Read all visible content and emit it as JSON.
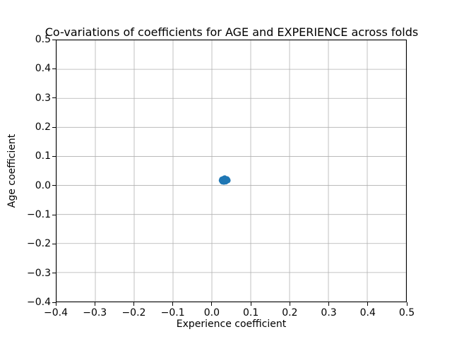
{
  "chart_data": {
    "type": "scatter",
    "title": "Co-variations of coefficients for AGE and EXPERIENCE across folds",
    "xlabel": "Experience coefficient",
    "ylabel": "Age coefficient",
    "xlim": [
      -0.4,
      0.5
    ],
    "ylim": [
      -0.4,
      0.5
    ],
    "xtick_values": [
      -0.4,
      -0.3,
      -0.2,
      -0.1,
      0.0,
      0.1,
      0.2,
      0.3,
      0.4,
      0.5
    ],
    "xtick_labels": [
      "−0.4",
      "−0.3",
      "−0.2",
      "−0.1",
      "0.0",
      "0.1",
      "0.2",
      "0.3",
      "0.4",
      "0.5"
    ],
    "ytick_values": [
      -0.4,
      -0.3,
      -0.2,
      -0.1,
      0.0,
      0.1,
      0.2,
      0.3,
      0.4,
      0.5
    ],
    "ytick_labels": [
      "−0.4",
      "−0.3",
      "−0.2",
      "−0.1",
      "0.0",
      "0.1",
      "0.2",
      "0.3",
      "0.4",
      "0.5"
    ],
    "grid": true,
    "marker_color": "#1f77b4",
    "marker_radius_px": 4,
    "points": [
      [
        0.025,
        0.017
      ],
      [
        0.028,
        0.02
      ],
      [
        0.03,
        0.015
      ],
      [
        0.031,
        0.019
      ],
      [
        0.029,
        0.022
      ],
      [
        0.032,
        0.017
      ],
      [
        0.033,
        0.021
      ],
      [
        0.034,
        0.014
      ],
      [
        0.035,
        0.018
      ],
      [
        0.036,
        0.022
      ],
      [
        0.037,
        0.016
      ],
      [
        0.038,
        0.019
      ],
      [
        0.04,
        0.02
      ],
      [
        0.027,
        0.013
      ],
      [
        0.03,
        0.023
      ],
      [
        0.033,
        0.025
      ],
      [
        0.026,
        0.021
      ],
      [
        0.031,
        0.012
      ],
      [
        0.034,
        0.023
      ],
      [
        0.036,
        0.013
      ],
      [
        0.039,
        0.022
      ],
      [
        0.028,
        0.016
      ],
      [
        0.032,
        0.02
      ],
      [
        0.035,
        0.016
      ],
      [
        0.041,
        0.017
      ]
    ]
  }
}
